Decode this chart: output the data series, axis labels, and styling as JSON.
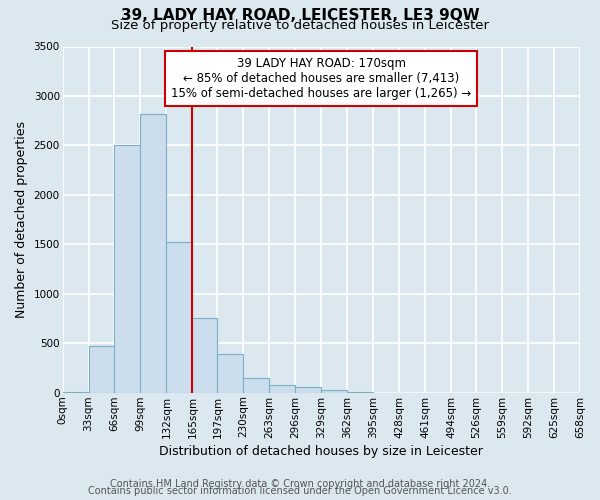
{
  "title": "39, LADY HAY ROAD, LEICESTER, LE3 9QW",
  "subtitle": "Size of property relative to detached houses in Leicester",
  "xlabel": "Distribution of detached houses by size in Leicester",
  "ylabel": "Number of detached properties",
  "bar_values": [
    5,
    470,
    2500,
    2820,
    1520,
    750,
    395,
    145,
    80,
    60,
    30,
    10,
    0,
    0,
    0,
    0,
    0,
    0,
    0,
    0
  ],
  "bin_edges": [
    0,
    33,
    66,
    99,
    132,
    165,
    197,
    230,
    263,
    296,
    329,
    362,
    395,
    428,
    461,
    494,
    526,
    559,
    592,
    625,
    658
  ],
  "tick_labels": [
    "0sqm",
    "33sqm",
    "66sqm",
    "99sqm",
    "132sqm",
    "165sqm",
    "197sqm",
    "230sqm",
    "263sqm",
    "296sqm",
    "329sqm",
    "362sqm",
    "395sqm",
    "428sqm",
    "461sqm",
    "494sqm",
    "526sqm",
    "559sqm",
    "592sqm",
    "625sqm",
    "658sqm"
  ],
  "bar_color": "#ccdded",
  "bar_edge_color": "#7aafc8",
  "vline_x": 165,
  "vline_color": "#cc0000",
  "ylim": [
    0,
    3500
  ],
  "yticks": [
    0,
    500,
    1000,
    1500,
    2000,
    2500,
    3000,
    3500
  ],
  "annotation_box_text": "39 LADY HAY ROAD: 170sqm\n← 85% of detached houses are smaller (7,413)\n15% of semi-detached houses are larger (1,265) →",
  "annotation_box_color": "#cc0000",
  "footer_line1": "Contains HM Land Registry data © Crown copyright and database right 2024.",
  "footer_line2": "Contains public sector information licensed under the Open Government Licence v3.0.",
  "plot_bg_color": "#dce8f0",
  "fig_bg_color": "#dce8f0",
  "grid_color": "#ffffff",
  "title_fontsize": 11,
  "subtitle_fontsize": 9.5,
  "axis_label_fontsize": 9,
  "tick_fontsize": 7.5,
  "footer_fontsize": 7,
  "annot_fontsize": 8.5
}
